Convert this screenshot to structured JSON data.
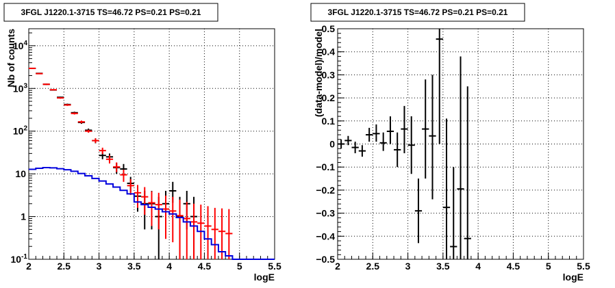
{
  "chart_data": [
    {
      "type": "scatter",
      "title": "3FGL J1220.1-3715 TS=46.72 PS=0.21 PS=0.21",
      "xlabel": "logE",
      "ylabel": "Nb of counts",
      "xlim": [
        2,
        5.5
      ],
      "ylim": [
        0.1,
        25000
      ],
      "yscale": "log",
      "grid": true,
      "x_ticks": [
        {
          "v": 2,
          "label": "2"
        },
        {
          "v": 2.5,
          "label": "2.5"
        },
        {
          "v": 3,
          "label": "3"
        },
        {
          "v": 3.5,
          "label": "3.5"
        },
        {
          "v": 4,
          "label": "4"
        },
        {
          "v": 4.5,
          "label": "4.5"
        },
        {
          "v": 5,
          "label": "5"
        },
        {
          "v": 5.5,
          "label": "5.5"
        }
      ],
      "y_ticks": [
        {
          "v": 0.1,
          "base": "10",
          "exp": "-1"
        },
        {
          "v": 1,
          "base": "1",
          "exp": ""
        },
        {
          "v": 10,
          "base": "10",
          "exp": ""
        },
        {
          "v": 100,
          "base": "10",
          "exp": "2"
        },
        {
          "v": 1000,
          "base": "10",
          "exp": "3"
        },
        {
          "v": 10000,
          "base": "10",
          "exp": "4"
        }
      ],
      "bin_half_width": 0.05,
      "series": [
        {
          "kind": "points",
          "color": "#000000",
          "x": [
            2.05,
            2.15,
            2.25,
            2.35,
            2.45,
            2.55,
            2.65,
            2.75,
            2.85,
            2.95,
            3.05,
            3.15,
            3.25,
            3.35,
            3.45,
            3.55,
            3.65,
            3.75,
            3.85,
            3.95,
            4.05,
            4.15,
            4.25,
            4.35
          ],
          "y": [
            2950,
            2250,
            1250,
            920,
            620,
            420,
            270,
            160,
            105,
            60,
            27,
            25,
            14,
            13,
            6,
            3,
            2,
            2,
            1,
            2,
            4,
            1,
            2,
            1
          ],
          "ylow": [
            2890,
            2200,
            1210,
            890,
            600,
            400,
            255,
            148,
            95,
            52,
            22,
            20,
            10,
            9,
            3.7,
            1.3,
            0.5,
            0.5,
            0.1,
            0.5,
            2.1,
            0.1,
            0.5,
            0.1
          ],
          "yhigh": [
            3010,
            2300,
            1290,
            950,
            640,
            440,
            285,
            172,
            115,
            68,
            32,
            30,
            18,
            17,
            8.5,
            5.2,
            4,
            4,
            2.9,
            4,
            6.5,
            2.9,
            4,
            2.9
          ]
        },
        {
          "kind": "points",
          "color": "#ff0000",
          "x": [
            2.05,
            2.15,
            2.25,
            2.35,
            2.45,
            2.55,
            2.65,
            2.75,
            2.85,
            2.95,
            3.05,
            3.15,
            3.25,
            3.35,
            3.45,
            3.55,
            3.65,
            3.75,
            3.85,
            3.95,
            4.05,
            4.15,
            4.25,
            4.35,
            4.45,
            4.55,
            4.65,
            4.75,
            4.85
          ],
          "y": [
            2950,
            2220,
            1250,
            930,
            600,
            410,
            260,
            165,
            100,
            60,
            35,
            22,
            14.5,
            9.5,
            5.3,
            3.6,
            2.9,
            2.1,
            1.9,
            1.5,
            1.35,
            1.05,
            0.9,
            0.75,
            0.7,
            0.6,
            0.5,
            0.45,
            0.4
          ],
          "ylow": [
            2890,
            2170,
            1210,
            900,
            575,
            390,
            245,
            153,
            92,
            53,
            29,
            17.5,
            11,
            6.5,
            3.2,
            1.6,
            1.1,
            0.6,
            0.5,
            0.3,
            0.25,
            0.1,
            0.1,
            0.1,
            0.1,
            0.1,
            0.1,
            0.1,
            0.1
          ],
          "yhigh": [
            3010,
            2270,
            1290,
            960,
            625,
            430,
            275,
            177,
            108,
            68,
            41,
            27,
            18.5,
            12.5,
            7.5,
            5.5,
            4.9,
            3.9,
            3.6,
            3.1,
            2.9,
            2.5,
            2.2,
            2.0,
            1.9,
            1.75,
            1.6,
            1.55,
            1.5
          ]
        },
        {
          "kind": "step",
          "color": "#0000dd",
          "edges": [
            2.0,
            2.1,
            2.2,
            2.3,
            2.4,
            2.5,
            2.6,
            2.7,
            2.8,
            2.9,
            3.0,
            3.1,
            3.2,
            3.3,
            3.4,
            3.5,
            3.6,
            3.7,
            3.8,
            3.9,
            4.0,
            4.1,
            4.2,
            4.3,
            4.4,
            4.5,
            4.6,
            4.7,
            4.8,
            4.9,
            5.0,
            5.1,
            5.2,
            5.3,
            5.4,
            5.5
          ],
          "values": [
            12.8,
            13.5,
            14.0,
            13.8,
            13.2,
            12.5,
            11.5,
            10.2,
            9.0,
            7.8,
            6.8,
            5.8,
            4.9,
            4.1,
            3.4,
            2.2,
            1.9,
            1.65,
            1.5,
            1.3,
            1.15,
            0.95,
            0.75,
            0.6,
            0.45,
            0.3,
            0.22,
            0.15,
            0.12,
            0.1,
            0.1,
            0.1,
            0.1,
            0.1,
            0.1
          ]
        }
      ]
    },
    {
      "type": "scatter",
      "title": "3FGL J1220.1-3715 TS=46.72 PS=0.21 PS=0.21",
      "xlabel": "logE",
      "ylabel": "(data-model)/model",
      "xlim": [
        2,
        5.5
      ],
      "ylim": [
        -0.5,
        0.5
      ],
      "yscale": "linear",
      "grid": true,
      "x_ticks": [
        {
          "v": 2,
          "label": "2"
        },
        {
          "v": 2.5,
          "label": "2.5"
        },
        {
          "v": 3,
          "label": "3"
        },
        {
          "v": 3.5,
          "label": "3.5"
        },
        {
          "v": 4,
          "label": "4"
        },
        {
          "v": 4.5,
          "label": "4.5"
        },
        {
          "v": 5,
          "label": "5"
        },
        {
          "v": 5.5,
          "label": "5.5"
        }
      ],
      "y_ticks": [
        {
          "v": -0.5,
          "label": "−0.5"
        },
        {
          "v": -0.4,
          "label": "−0.4"
        },
        {
          "v": -0.3,
          "label": "−0.3"
        },
        {
          "v": -0.2,
          "label": "−0.2"
        },
        {
          "v": -0.1,
          "label": "−0.1"
        },
        {
          "v": 0,
          "label": "0"
        },
        {
          "v": 0.1,
          "label": "0.1"
        },
        {
          "v": 0.2,
          "label": "0.2"
        },
        {
          "v": 0.3,
          "label": "0.3"
        },
        {
          "v": 0.4,
          "label": "0.4"
        },
        {
          "v": 0.5,
          "label": "0.5"
        }
      ],
      "bin_half_width": 0.05,
      "series": [
        {
          "kind": "points",
          "color": "#000000",
          "x": [
            2.05,
            2.15,
            2.25,
            2.35,
            2.45,
            2.55,
            2.65,
            2.75,
            2.85,
            2.95,
            3.05,
            3.15,
            3.25,
            3.35,
            3.45,
            3.55,
            3.65,
            3.75,
            3.85
          ],
          "y": [
            0.0,
            0.015,
            -0.015,
            -0.03,
            0.04,
            0.045,
            0.005,
            0.055,
            -0.025,
            0.065,
            -0.005,
            -0.29,
            0.065,
            0.035,
            0.455,
            -0.275,
            -0.445,
            -0.195,
            -0.41
          ],
          "ylow": [
            -0.02,
            -0.005,
            -0.04,
            -0.055,
            0.01,
            0.01,
            -0.03,
            0.0,
            -0.1,
            -0.04,
            -0.13,
            -0.43,
            -0.15,
            -0.24,
            0.0,
            -0.5,
            -0.5,
            -0.5,
            -0.5
          ],
          "yhigh": [
            0.02,
            0.035,
            0.01,
            -0.005,
            0.07,
            0.085,
            0.05,
            0.12,
            0.05,
            0.165,
            0.12,
            -0.15,
            0.28,
            0.3,
            0.5,
            0.11,
            -0.1,
            0.38,
            0.25
          ]
        }
      ]
    }
  ]
}
